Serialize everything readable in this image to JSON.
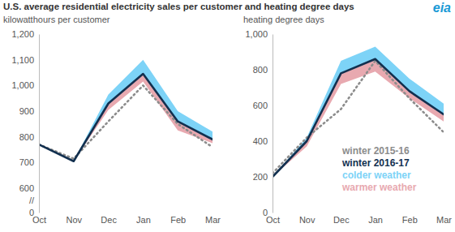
{
  "title": "U.S. average residential electricity sales per customer and heating degree days",
  "logo": "eia",
  "chart_data": [
    {
      "type": "line",
      "ylabel": "kilowatthours per customer",
      "categories": [
        "Oct",
        "Nov",
        "Dec",
        "Jan",
        "Feb",
        "Mar"
      ],
      "ylim": [
        0,
        1200
      ],
      "yticks": [
        0,
        600,
        700,
        800,
        900,
        {
          "value": 1000,
          "label": "1,000"
        },
        {
          "value": 1100,
          "label": "1,100"
        },
        {
          "value": 1200,
          "label": "1,200"
        }
      ],
      "annotations": [
        "//"
      ],
      "series": [
        {
          "name": "winter 2015-16",
          "type": "line",
          "line_style": "dotted",
          "color": "#8c8c8c",
          "values": [
            770,
            715,
            860,
            1000,
            850,
            760
          ]
        },
        {
          "name": "winter 2016-17",
          "type": "line",
          "line_style": "solid",
          "color": "#12304f",
          "values": [
            770,
            705,
            930,
            1045,
            860,
            790
          ]
        },
        {
          "name": "colder weather",
          "type": "area",
          "color": "#7dd3f7",
          "values": [
            null,
            705,
            965,
            1100,
            900,
            820
          ]
        },
        {
          "name": "warmer weather",
          "type": "area",
          "color": "#e8a9b0",
          "values": [
            null,
            705,
            905,
            1015,
            825,
            775
          ]
        }
      ]
    },
    {
      "type": "line",
      "ylabel": "heating degree days",
      "categories": [
        "Oct",
        "Nov",
        "Dec",
        "Jan",
        "Feb",
        "Mar"
      ],
      "ylim": [
        0,
        1000
      ],
      "yticks": [
        0,
        200,
        400,
        600,
        800,
        {
          "value": 1000,
          "label": "1,000"
        }
      ],
      "legend": "lower right",
      "series": [
        {
          "name": "winter 2015-16",
          "type": "line",
          "line_style": "dotted",
          "color": "#8c8c8c",
          "values": [
            220,
            420,
            580,
            850,
            640,
            450
          ]
        },
        {
          "name": "winter 2016-17",
          "type": "line",
          "line_style": "solid",
          "color": "#12304f",
          "values": [
            200,
            400,
            780,
            860,
            680,
            550
          ]
        },
        {
          "name": "colder weather",
          "type": "area",
          "color": "#7dd3f7",
          "values": [
            200,
            420,
            850,
            930,
            750,
            610
          ]
        },
        {
          "name": "warmer weather",
          "type": "area",
          "color": "#e8a9b0",
          "values": [
            200,
            370,
            720,
            790,
            640,
            510
          ]
        }
      ]
    }
  ]
}
